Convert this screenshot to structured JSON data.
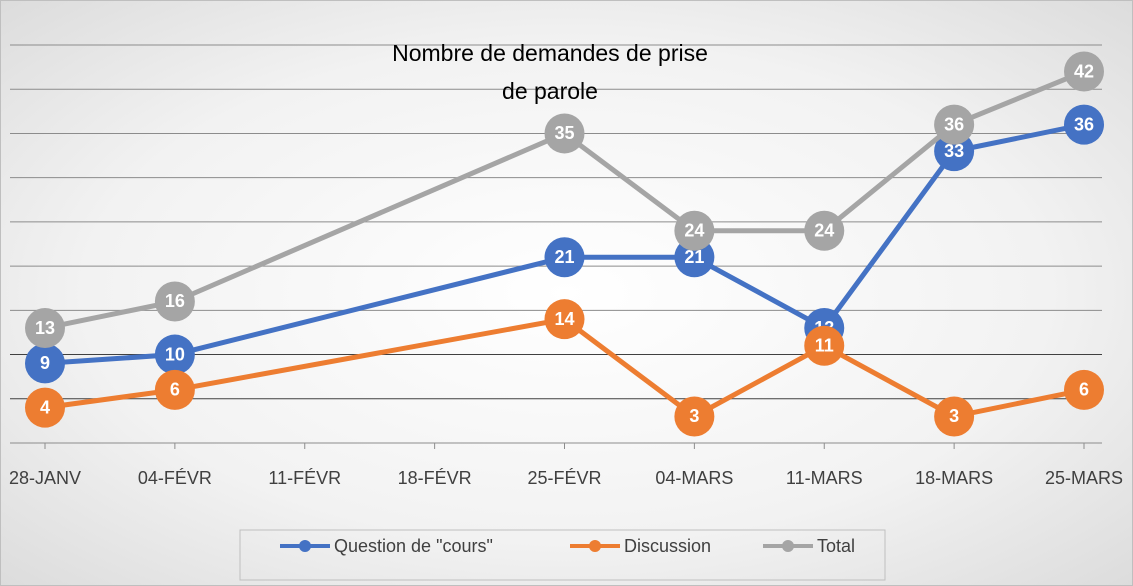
{
  "chart_data": {
    "type": "line",
    "title": "Nombre de demandes de prise de parole",
    "categories": [
      "28-JANV",
      "04-FÉVR",
      "11-FÉVR",
      "18-FÉVR",
      "25-FÉVR",
      "04-MARS",
      "11-MARS",
      "18-MARS",
      "25-MARS"
    ],
    "x": [
      "28-JANV",
      "04-FÉVR",
      "25-FÉVR",
      "04-MARS",
      "11-MARS",
      "18-MARS",
      "25-MARS"
    ],
    "series": [
      {
        "name": "Question de \"cours\"",
        "color": "#4472c4",
        "values": [
          9,
          10,
          21,
          21,
          13,
          33,
          36
        ]
      },
      {
        "name": "Discussion",
        "color": "#ed7d31",
        "values": [
          4,
          6,
          14,
          3,
          11,
          3,
          6
        ]
      },
      {
        "name": "Total",
        "color": "#a5a5a5",
        "values": [
          13,
          16,
          35,
          24,
          24,
          36,
          42
        ]
      }
    ],
    "ylim": [
      0,
      45
    ],
    "yticks": [
      0,
      5,
      10,
      15,
      20,
      25,
      30,
      35,
      40,
      45
    ],
    "grid": true,
    "legend": "bottom"
  }
}
